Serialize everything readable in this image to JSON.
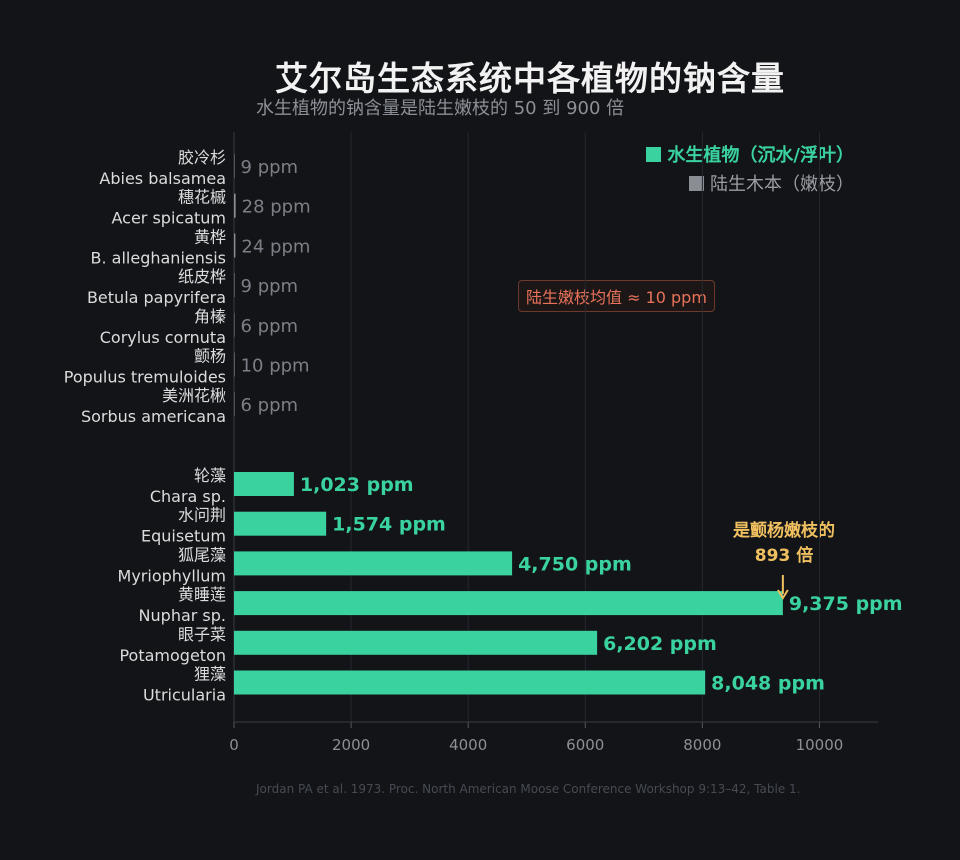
{
  "title": "艾尔岛生态系统中各植物的钠含量",
  "subtitle": "水生植物的钠含量是陆生嫩枝的 50 到 900 倍",
  "legend": {
    "aquatic": "水生植物（沉水/浮叶）",
    "terrestrial": "陆生木本（嫩枝）"
  },
  "annotations": {
    "average_box": "陆生嫩枝均值 ≈ 10 ppm",
    "callout_line1": "是颤杨嫩枝的",
    "callout_line2": "893 倍"
  },
  "source": "Jordan PA et al. 1973. Proc. North American Moose Conference Workshop 9:13–42, Table 1.",
  "colors": {
    "background": "#121418",
    "aquatic": "#3ad29f",
    "terrestrial": "#8a8d93",
    "average_box_text": "#e8735a",
    "callout": "#f0c060"
  },
  "chart_data": {
    "type": "bar",
    "orientation": "horizontal",
    "xlim": [
      0,
      11000
    ],
    "x_ticks": [
      0,
      2000,
      4000,
      6000,
      8000,
      10000
    ],
    "grid": true,
    "legend_position": "top-right",
    "series": [
      {
        "name": "陆生木本（嫩枝）",
        "color": "#8a8d93",
        "items": [
          {
            "label_cn": "胶冷杉",
            "label_latin": "Abies balsamea",
            "value": 9,
            "value_label": "9 ppm"
          },
          {
            "label_cn": "穗花槭",
            "label_latin": "Acer spicatum",
            "value": 28,
            "value_label": "28 ppm"
          },
          {
            "label_cn": "黄桦",
            "label_latin": "B. alleghaniensis",
            "value": 24,
            "value_label": "24 ppm"
          },
          {
            "label_cn": "纸皮桦",
            "label_latin": "Betula papyrifera",
            "value": 9,
            "value_label": "9 ppm"
          },
          {
            "label_cn": "角榛",
            "label_latin": "Corylus cornuta",
            "value": 6,
            "value_label": "6 ppm"
          },
          {
            "label_cn": "颤杨",
            "label_latin": "Populus tremuloides",
            "value": 10,
            "value_label": "10 ppm"
          },
          {
            "label_cn": "美洲花楸",
            "label_latin": "Sorbus americana",
            "value": 6,
            "value_label": "6 ppm"
          }
        ]
      },
      {
        "name": "水生植物（沉水/浮叶）",
        "color": "#3ad29f",
        "items": [
          {
            "label_cn": "轮藻",
            "label_latin": "Chara sp.",
            "value": 1023,
            "value_label": "1,023 ppm"
          },
          {
            "label_cn": "水问荆",
            "label_latin": "Equisetum",
            "value": 1574,
            "value_label": "1,574 ppm"
          },
          {
            "label_cn": "狐尾藻",
            "label_latin": "Myriophyllum",
            "value": 4750,
            "value_label": "4,750 ppm"
          },
          {
            "label_cn": "黄睡莲",
            "label_latin": "Nuphar sp.",
            "value": 9375,
            "value_label": "9,375 ppm"
          },
          {
            "label_cn": "眼子菜",
            "label_latin": "Potamogeton",
            "value": 6202,
            "value_label": "6,202 ppm"
          },
          {
            "label_cn": "狸藻",
            "label_latin": "Utricularia",
            "value": 8048,
            "value_label": "8,048 ppm"
          }
        ]
      }
    ]
  }
}
